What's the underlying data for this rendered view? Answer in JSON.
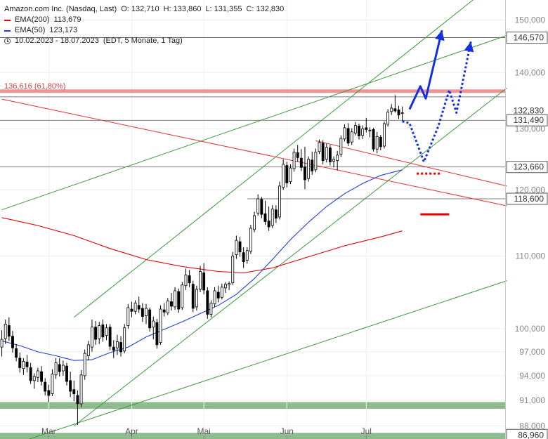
{
  "chart_data": {
    "type": "candlestick",
    "instrument": "Amazon.com Inc. (Nasdaq, Last)",
    "ohlc_label": {
      "open": "O: 132,710",
      "high": "H: 133,860",
      "low": "L: 131,355",
      "close": "C: 132,830"
    },
    "ema200": {
      "label": "EMA(200)",
      "value": "113,679",
      "color": "#e00000"
    },
    "ema50": {
      "label": "EMA(50)",
      "value": "123,173",
      "color": "#1f3fd6"
    },
    "period": "10.02.2023 - 18.07.2023",
    "period_info": "(EDT, 5 Monate, 1 Tag)",
    "y_scale": "log",
    "y_range": [
      86.5,
      154.0
    ],
    "y_ticks": [
      {
        "v": 88,
        "label": "88,000"
      },
      {
        "v": 91,
        "label": "91,000"
      },
      {
        "v": 94,
        "label": "94,000"
      },
      {
        "v": 97,
        "label": "97,000"
      },
      {
        "v": 100,
        "label": "100,000"
      },
      {
        "v": 110,
        "label": "110,000"
      },
      {
        "v": 120,
        "label": "120,000"
      },
      {
        "v": 130,
        "label": "130,000"
      },
      {
        "v": 140,
        "label": "140,000"
      },
      {
        "v": 150,
        "label": "150,000"
      }
    ],
    "x_labels": [
      {
        "i": 13,
        "label": "Mar"
      },
      {
        "i": 36,
        "label": "Apr"
      },
      {
        "i": 56,
        "label": "Mai"
      },
      {
        "i": 79,
        "label": "Jun"
      },
      {
        "i": 101,
        "label": "Jul"
      }
    ],
    "n_slots": 140,
    "fib_level": {
      "value": 136.616,
      "label": "136,616 (61,80%)",
      "color": "#f08080"
    },
    "horizontal_levels": [
      {
        "value": 146.57,
        "label": "146,570"
      },
      {
        "value": 135.6,
        "label": ""
      },
      {
        "value": 131.49,
        "label": "131,490"
      },
      {
        "value": 123.66,
        "label": "123,660"
      },
      {
        "value": 118.6,
        "label": "118,600",
        "start_i": 70
      }
    ],
    "last_price_label": "132,830",
    "bottom_level": {
      "value": 86.96,
      "label": "86,960"
    },
    "support_zones": [
      {
        "from": 90.0,
        "to": 90.8,
        "color": "#8fbc8f"
      },
      {
        "from": 86.5,
        "to": 87.2,
        "color": "#8fbc8f"
      }
    ],
    "candles": [
      {
        "i": 0,
        "o": 97.6,
        "h": 99.8,
        "l": 96.4,
        "c": 98.6
      },
      {
        "i": 1,
        "o": 98.7,
        "h": 101.2,
        "l": 98.0,
        "c": 100.6
      },
      {
        "i": 2,
        "o": 100.4,
        "h": 101.5,
        "l": 98.4,
        "c": 99.0
      },
      {
        "i": 3,
        "o": 99.0,
        "h": 99.7,
        "l": 96.9,
        "c": 97.5
      },
      {
        "i": 4,
        "o": 97.4,
        "h": 98.0,
        "l": 95.8,
        "c": 96.3
      },
      {
        "i": 5,
        "o": 96.2,
        "h": 96.9,
        "l": 94.4,
        "c": 95.0
      },
      {
        "i": 6,
        "o": 94.9,
        "h": 96.2,
        "l": 94.1,
        "c": 95.8
      },
      {
        "i": 7,
        "o": 95.7,
        "h": 96.6,
        "l": 94.4,
        "c": 95.1
      },
      {
        "i": 8,
        "o": 95.0,
        "h": 95.6,
        "l": 93.0,
        "c": 93.4
      },
      {
        "i": 9,
        "o": 93.4,
        "h": 94.3,
        "l": 92.4,
        "c": 93.9
      },
      {
        "i": 10,
        "o": 93.8,
        "h": 95.0,
        "l": 93.2,
        "c": 94.6
      },
      {
        "i": 11,
        "o": 94.5,
        "h": 95.2,
        "l": 92.8,
        "c": 93.3
      },
      {
        "i": 12,
        "o": 93.2,
        "h": 93.7,
        "l": 91.6,
        "c": 92.1
      },
      {
        "i": 13,
        "o": 92.2,
        "h": 92.9,
        "l": 90.8,
        "c": 91.6
      },
      {
        "i": 14,
        "o": 91.8,
        "h": 94.8,
        "l": 91.5,
        "c": 94.2
      },
      {
        "i": 15,
        "o": 94.1,
        "h": 96.2,
        "l": 93.6,
        "c": 95.6
      },
      {
        "i": 16,
        "o": 95.4,
        "h": 96.2,
        "l": 93.9,
        "c": 94.5
      },
      {
        "i": 17,
        "o": 94.6,
        "h": 95.9,
        "l": 94.0,
        "c": 95.3
      },
      {
        "i": 18,
        "o": 95.2,
        "h": 95.6,
        "l": 92.8,
        "c": 93.3
      },
      {
        "i": 19,
        "o": 93.4,
        "h": 94.5,
        "l": 91.4,
        "c": 92.1
      },
      {
        "i": 20,
        "o": 92.3,
        "h": 93.4,
        "l": 90.9,
        "c": 91.8
      },
      {
        "i": 21,
        "o": 91.6,
        "h": 92.2,
        "l": 88.1,
        "c": 90.6
      },
      {
        "i": 22,
        "o": 90.6,
        "h": 94.7,
        "l": 90.2,
        "c": 94.1
      },
      {
        "i": 23,
        "o": 94.0,
        "h": 97.3,
        "l": 93.5,
        "c": 96.8
      },
      {
        "i": 24,
        "o": 96.5,
        "h": 98.4,
        "l": 95.9,
        "c": 97.9
      },
      {
        "i": 25,
        "o": 97.6,
        "h": 101.2,
        "l": 97.0,
        "c": 100.2
      },
      {
        "i": 26,
        "o": 100.2,
        "h": 101.0,
        "l": 97.9,
        "c": 98.6
      },
      {
        "i": 27,
        "o": 98.7,
        "h": 100.9,
        "l": 98.0,
        "c": 100.4
      },
      {
        "i": 28,
        "o": 100.5,
        "h": 101.2,
        "l": 98.3,
        "c": 98.9
      },
      {
        "i": 29,
        "o": 99.1,
        "h": 100.6,
        "l": 98.5,
        "c": 100.1
      },
      {
        "i": 30,
        "o": 100.2,
        "h": 100.6,
        "l": 97.2,
        "c": 97.7
      },
      {
        "i": 31,
        "o": 97.6,
        "h": 98.5,
        "l": 96.2,
        "c": 97.2
      },
      {
        "i": 32,
        "o": 97.5,
        "h": 99.2,
        "l": 96.6,
        "c": 98.3
      },
      {
        "i": 33,
        "o": 98.2,
        "h": 99.0,
        "l": 96.4,
        "c": 97.0
      },
      {
        "i": 34,
        "o": 97.1,
        "h": 100.6,
        "l": 96.8,
        "c": 100.1
      },
      {
        "i": 35,
        "o": 100.4,
        "h": 103.3,
        "l": 100.0,
        "c": 102.8
      },
      {
        "i": 36,
        "o": 102.6,
        "h": 103.6,
        "l": 101.5,
        "c": 102.3
      },
      {
        "i": 37,
        "o": 102.3,
        "h": 103.8,
        "l": 101.9,
        "c": 103.4
      },
      {
        "i": 38,
        "o": 103.1,
        "h": 104.3,
        "l": 102.1,
        "c": 102.6
      },
      {
        "i": 39,
        "o": 102.7,
        "h": 103.4,
        "l": 100.9,
        "c": 101.6
      },
      {
        "i": 40,
        "o": 101.7,
        "h": 103.3,
        "l": 100.6,
        "c": 102.7
      },
      {
        "i": 41,
        "o": 102.5,
        "h": 102.8,
        "l": 99.6,
        "c": 100.1
      },
      {
        "i": 42,
        "o": 100.2,
        "h": 101.6,
        "l": 98.6,
        "c": 101.0
      },
      {
        "i": 43,
        "o": 100.8,
        "h": 101.3,
        "l": 97.4,
        "c": 97.9
      },
      {
        "i": 44,
        "o": 98.2,
        "h": 103.1,
        "l": 97.9,
        "c": 102.6
      },
      {
        "i": 45,
        "o": 102.5,
        "h": 103.4,
        "l": 101.6,
        "c": 102.2
      },
      {
        "i": 46,
        "o": 102.1,
        "h": 104.1,
        "l": 101.8,
        "c": 103.7
      },
      {
        "i": 47,
        "o": 103.6,
        "h": 104.8,
        "l": 102.4,
        "c": 103.0
      },
      {
        "i": 48,
        "o": 102.9,
        "h": 105.6,
        "l": 102.5,
        "c": 105.1
      },
      {
        "i": 49,
        "o": 105.0,
        "h": 105.4,
        "l": 102.1,
        "c": 102.6
      },
      {
        "i": 50,
        "o": 102.8,
        "h": 106.3,
        "l": 102.5,
        "c": 105.9
      },
      {
        "i": 51,
        "o": 105.8,
        "h": 108.2,
        "l": 105.2,
        "c": 107.3
      },
      {
        "i": 52,
        "o": 107.2,
        "h": 108.0,
        "l": 105.6,
        "c": 106.2
      },
      {
        "i": 53,
        "o": 106.0,
        "h": 106.5,
        "l": 102.2,
        "c": 102.7
      },
      {
        "i": 54,
        "o": 102.9,
        "h": 105.8,
        "l": 102.4,
        "c": 105.3
      },
      {
        "i": 55,
        "o": 105.3,
        "h": 108.6,
        "l": 104.9,
        "c": 107.8
      },
      {
        "i": 56,
        "o": 107.6,
        "h": 109.0,
        "l": 104.6,
        "c": 105.2
      },
      {
        "i": 57,
        "o": 105.1,
        "h": 105.6,
        "l": 101.3,
        "c": 101.9
      },
      {
        "i": 58,
        "o": 101.9,
        "h": 103.8,
        "l": 101.5,
        "c": 103.4
      },
      {
        "i": 59,
        "o": 103.3,
        "h": 105.6,
        "l": 102.9,
        "c": 105.1
      },
      {
        "i": 60,
        "o": 104.9,
        "h": 105.8,
        "l": 103.5,
        "c": 104.1
      },
      {
        "i": 61,
        "o": 104.2,
        "h": 106.1,
        "l": 103.9,
        "c": 105.6
      },
      {
        "i": 62,
        "o": 105.5,
        "h": 106.3,
        "l": 104.8,
        "c": 106.0
      },
      {
        "i": 63,
        "o": 105.9,
        "h": 106.4,
        "l": 105.2,
        "c": 106.1
      },
      {
        "i": 64,
        "o": 106.2,
        "h": 110.6,
        "l": 105.9,
        "c": 110.0
      },
      {
        "i": 65,
        "o": 110.2,
        "h": 113.0,
        "l": 109.6,
        "c": 112.3
      },
      {
        "i": 66,
        "o": 112.1,
        "h": 112.8,
        "l": 109.9,
        "c": 110.6
      },
      {
        "i": 67,
        "o": 110.5,
        "h": 111.3,
        "l": 108.3,
        "c": 109.2
      },
      {
        "i": 68,
        "o": 109.4,
        "h": 111.3,
        "l": 108.9,
        "c": 110.8
      },
      {
        "i": 69,
        "o": 110.7,
        "h": 114.6,
        "l": 110.3,
        "c": 114.1
      },
      {
        "i": 70,
        "o": 113.9,
        "h": 116.6,
        "l": 113.5,
        "c": 116.0
      },
      {
        "i": 71,
        "o": 116.4,
        "h": 119.3,
        "l": 116.0,
        "c": 118.6
      },
      {
        "i": 72,
        "o": 118.5,
        "h": 118.9,
        "l": 115.6,
        "c": 116.2
      },
      {
        "i": 73,
        "o": 116.3,
        "h": 118.3,
        "l": 114.6,
        "c": 115.1
      },
      {
        "i": 74,
        "o": 115.2,
        "h": 117.4,
        "l": 113.7,
        "c": 114.3
      },
      {
        "i": 75,
        "o": 114.5,
        "h": 117.6,
        "l": 114.1,
        "c": 117.0
      },
      {
        "i": 76,
        "o": 116.9,
        "h": 117.6,
        "l": 114.9,
        "c": 115.6
      },
      {
        "i": 77,
        "o": 115.8,
        "h": 121.3,
        "l": 115.4,
        "c": 120.6
      },
      {
        "i": 78,
        "o": 120.4,
        "h": 124.9,
        "l": 120.0,
        "c": 124.1
      },
      {
        "i": 79,
        "o": 123.9,
        "h": 124.5,
        "l": 120.4,
        "c": 121.1
      },
      {
        "i": 80,
        "o": 121.3,
        "h": 124.1,
        "l": 120.9,
        "c": 123.5
      },
      {
        "i": 81,
        "o": 123.4,
        "h": 126.7,
        "l": 122.9,
        "c": 126.1
      },
      {
        "i": 82,
        "o": 126.0,
        "h": 127.3,
        "l": 124.5,
        "c": 125.2
      },
      {
        "i": 83,
        "o": 125.1,
        "h": 126.6,
        "l": 123.0,
        "c": 123.6
      },
      {
        "i": 84,
        "o": 123.7,
        "h": 127.0,
        "l": 120.1,
        "c": 121.6
      },
      {
        "i": 85,
        "o": 121.8,
        "h": 125.4,
        "l": 121.3,
        "c": 124.9
      },
      {
        "i": 86,
        "o": 124.8,
        "h": 126.2,
        "l": 122.4,
        "c": 123.0
      },
      {
        "i": 87,
        "o": 123.2,
        "h": 126.7,
        "l": 122.8,
        "c": 126.1
      },
      {
        "i": 88,
        "o": 126.2,
        "h": 128.2,
        "l": 125.8,
        "c": 127.7
      },
      {
        "i": 89,
        "o": 127.6,
        "h": 128.1,
        "l": 124.1,
        "c": 124.7
      },
      {
        "i": 90,
        "o": 124.9,
        "h": 127.5,
        "l": 124.4,
        "c": 126.9
      },
      {
        "i": 91,
        "o": 126.8,
        "h": 127.3,
        "l": 123.9,
        "c": 124.5
      },
      {
        "i": 92,
        "o": 124.6,
        "h": 125.4,
        "l": 123.6,
        "c": 124.9
      },
      {
        "i": 93,
        "o": 124.7,
        "h": 126.3,
        "l": 123.1,
        "c": 125.6
      },
      {
        "i": 94,
        "o": 125.7,
        "h": 128.9,
        "l": 125.3,
        "c": 128.4
      },
      {
        "i": 95,
        "o": 128.3,
        "h": 130.8,
        "l": 127.9,
        "c": 130.2
      },
      {
        "i": 96,
        "o": 130.1,
        "h": 131.0,
        "l": 127.1,
        "c": 127.6
      },
      {
        "i": 97,
        "o": 127.8,
        "h": 130.1,
        "l": 127.3,
        "c": 129.5
      },
      {
        "i": 98,
        "o": 129.3,
        "h": 131.2,
        "l": 128.9,
        "c": 130.6
      },
      {
        "i": 99,
        "o": 130.5,
        "h": 130.9,
        "l": 128.2,
        "c": 128.8
      },
      {
        "i": 100,
        "o": 128.9,
        "h": 130.6,
        "l": 128.3,
        "c": 130.0
      },
      {
        "i": 101,
        "o": 130.2,
        "h": 131.9,
        "l": 129.4,
        "c": 129.9
      },
      {
        "i": 102,
        "o": 129.7,
        "h": 130.3,
        "l": 128.6,
        "c": 129.8
      },
      {
        "i": 103,
        "o": 129.9,
        "h": 130.2,
        "l": 126.2,
        "c": 126.6
      },
      {
        "i": 104,
        "o": 126.6,
        "h": 129.5,
        "l": 125.9,
        "c": 128.7
      },
      {
        "i": 105,
        "o": 128.6,
        "h": 129.0,
        "l": 126.4,
        "c": 127.0
      },
      {
        "i": 106,
        "o": 127.1,
        "h": 131.3,
        "l": 126.7,
        "c": 130.9
      },
      {
        "i": 107,
        "o": 130.8,
        "h": 133.4,
        "l": 130.4,
        "c": 132.9
      },
      {
        "i": 108,
        "o": 133.0,
        "h": 134.3,
        "l": 132.4,
        "c": 133.6
      },
      {
        "i": 109,
        "o": 133.5,
        "h": 135.9,
        "l": 132.8,
        "c": 133.1
      },
      {
        "i": 110,
        "o": 133.3,
        "h": 134.0,
        "l": 131.7,
        "c": 132.4
      },
      {
        "i": 111,
        "o": 132.7,
        "h": 133.9,
        "l": 131.4,
        "c": 132.8
      }
    ],
    "ema200_series": [
      {
        "i": 0,
        "v": 115.7
      },
      {
        "i": 10,
        "v": 114.5
      },
      {
        "i": 20,
        "v": 113.0
      },
      {
        "i": 30,
        "v": 111.1
      },
      {
        "i": 40,
        "v": 109.5
      },
      {
        "i": 50,
        "v": 108.5
      },
      {
        "i": 60,
        "v": 107.8
      },
      {
        "i": 67,
        "v": 107.6
      },
      {
        "i": 75,
        "v": 108.3
      },
      {
        "i": 85,
        "v": 109.9
      },
      {
        "i": 95,
        "v": 111.5
      },
      {
        "i": 105,
        "v": 112.8
      },
      {
        "i": 111,
        "v": 113.7
      }
    ],
    "ema50_series": [
      {
        "i": 0,
        "v": 98.4
      },
      {
        "i": 5,
        "v": 97.8
      },
      {
        "i": 10,
        "v": 97.0
      },
      {
        "i": 15,
        "v": 96.5
      },
      {
        "i": 20,
        "v": 95.9
      },
      {
        "i": 25,
        "v": 96.0
      },
      {
        "i": 30,
        "v": 96.9
      },
      {
        "i": 35,
        "v": 97.6
      },
      {
        "i": 40,
        "v": 98.9
      },
      {
        "i": 45,
        "v": 99.9
      },
      {
        "i": 50,
        "v": 100.9
      },
      {
        "i": 55,
        "v": 102.0
      },
      {
        "i": 60,
        "v": 103.1
      },
      {
        "i": 65,
        "v": 104.6
      },
      {
        "i": 70,
        "v": 106.8
      },
      {
        "i": 75,
        "v": 109.5
      },
      {
        "i": 80,
        "v": 112.4
      },
      {
        "i": 85,
        "v": 115.0
      },
      {
        "i": 90,
        "v": 117.4
      },
      {
        "i": 95,
        "v": 119.4
      },
      {
        "i": 100,
        "v": 121.0
      },
      {
        "i": 105,
        "v": 122.3
      },
      {
        "i": 111,
        "v": 123.2
      }
    ],
    "trend_lines": [
      {
        "name": "channel-upper",
        "color": "#3c9a3c",
        "p1": {
          "i": 20,
          "v": 101.5
        },
        "p2": {
          "i": 134,
          "v": 156.0
        }
      },
      {
        "name": "channel-lower",
        "color": "#3c9a3c",
        "p1": {
          "i": 20,
          "v": 88.0
        },
        "p2": {
          "i": 140,
          "v": 137.2
        }
      },
      {
        "name": "wide-upper",
        "color": "#3c9a3c",
        "p1": {
          "i": 0,
          "v": 116.9
        },
        "p2": {
          "i": 140,
          "v": 147.0
        }
      },
      {
        "name": "wide-lower",
        "color": "#3c9a3c",
        "p1": {
          "i": 4,
          "v": 86.0
        },
        "p2": {
          "i": 140,
          "v": 106.5
        }
      },
      {
        "name": "downtrend-long",
        "color": "#e03030",
        "p1": {
          "i": 0,
          "v": 135.2
        },
        "p2": {
          "i": 140,
          "v": 117.5
        }
      },
      {
        "name": "downtrend-short",
        "color": "#e03030",
        "p1": {
          "i": 87,
          "v": 128.0
        },
        "p2": {
          "i": 140,
          "v": 120.6
        }
      }
    ],
    "projections": [
      {
        "name": "bullish-path",
        "style": "solid",
        "color": "#1530e0",
        "points": [
          {
            "i": 113,
            "v": 133.4
          },
          {
            "i": 116,
            "v": 137.5
          },
          {
            "i": 117.5,
            "v": 135.3
          },
          {
            "i": 122,
            "v": 148.0
          }
        ]
      },
      {
        "name": "correction-path",
        "style": "dotted",
        "color": "#1530e0",
        "points": [
          {
            "i": 111,
            "v": 131.3
          },
          {
            "i": 113,
            "v": 131.0
          },
          {
            "i": 117,
            "v": 124.5
          },
          {
            "i": 121,
            "v": 130.5
          },
          {
            "i": 124,
            "v": 136.8
          },
          {
            "i": 126,
            "v": 132.8
          },
          {
            "i": 130,
            "v": 145.8
          }
        ]
      }
    ],
    "red_marks": [
      {
        "name": "red-dotted-mark",
        "style": "dotted",
        "from_i": 115,
        "to_i": 122,
        "v": 122.6
      },
      {
        "name": "red-solid-mark",
        "style": "solid",
        "from_i": 116,
        "to_i": 124,
        "v": 116.2
      }
    ]
  }
}
